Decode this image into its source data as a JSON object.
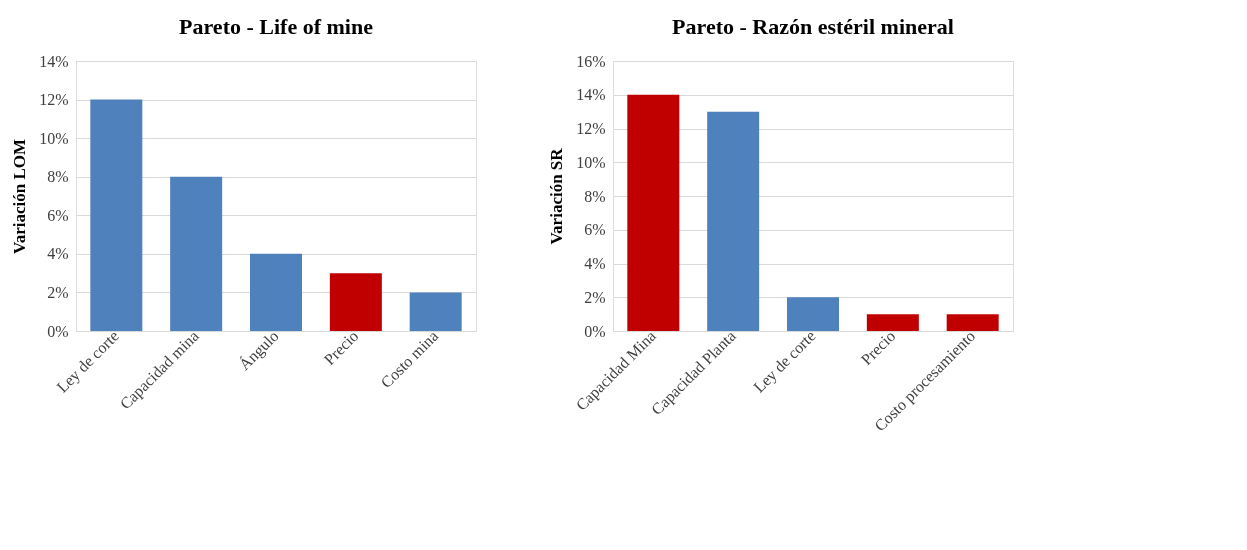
{
  "chart_data": [
    {
      "type": "bar",
      "title": "Pareto - Life of mine",
      "ylabel": "Variación LOM",
      "categories": [
        "Ley de corte",
        "Capacidad mina",
        "Ángulo",
        "Precio",
        "Costo mina"
      ],
      "values": [
        12,
        8,
        4,
        3,
        2
      ],
      "colors": [
        "#4f81bd",
        "#4f81bd",
        "#4f81bd",
        "#c00000",
        "#4f81bd"
      ],
      "ylim": [
        0,
        14
      ],
      "yticks": [
        {
          "value": 0,
          "label": "0%"
        },
        {
          "value": 2,
          "label": "2%"
        },
        {
          "value": 4,
          "label": "4%"
        },
        {
          "value": 6,
          "label": "6%"
        },
        {
          "value": 8,
          "label": "8%"
        },
        {
          "value": 10,
          "label": "10%"
        },
        {
          "value": 12,
          "label": "12%"
        },
        {
          "value": 14,
          "label": "14%"
        }
      ],
      "grid": "y"
    },
    {
      "type": "bar",
      "title": "Pareto - Razón estéril mineral",
      "ylabel": "Variación SR",
      "categories": [
        "Capacidad Mina",
        "Capacidad Planta",
        "Ley de corte",
        "Precio",
        "Costo procesamiento"
      ],
      "values": [
        14,
        13,
        2,
        1,
        1
      ],
      "colors": [
        "#c00000",
        "#4f81bd",
        "#4f81bd",
        "#c00000",
        "#c00000"
      ],
      "ylim": [
        0,
        16
      ],
      "yticks": [
        {
          "value": 0,
          "label": "0%"
        },
        {
          "value": 2,
          "label": "2%"
        },
        {
          "value": 4,
          "label": "4%"
        },
        {
          "value": 6,
          "label": "6%"
        },
        {
          "value": 8,
          "label": "8%"
        },
        {
          "value": 10,
          "label": "10%"
        },
        {
          "value": 12,
          "label": "12%"
        },
        {
          "value": 14,
          "label": "14%"
        },
        {
          "value": 16,
          "label": "16%"
        }
      ],
      "grid": "y"
    }
  ]
}
